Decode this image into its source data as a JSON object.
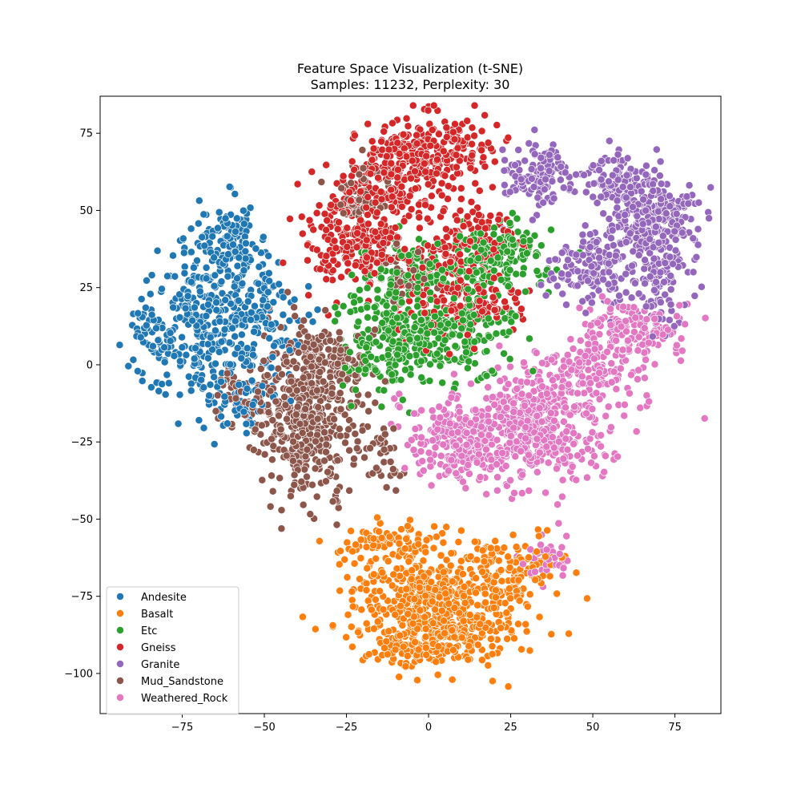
{
  "chart_data": {
    "type": "scatter",
    "title_lines": [
      "Feature Space Visualization (t-SNE)",
      "Samples: 11232, Perplexity: 30"
    ],
    "xlabel": "",
    "ylabel": "",
    "xlim": [
      -100,
      89
    ],
    "ylim": [
      -113,
      87
    ],
    "xticks": [
      -75,
      -50,
      -25,
      0,
      25,
      50,
      75
    ],
    "yticks": [
      -100,
      -75,
      -50,
      -25,
      0,
      25,
      50,
      75
    ],
    "grid": false,
    "legend_position": "lower-left",
    "marker": "circle with white edge",
    "series": [
      {
        "name": "Andesite",
        "color": "#1f77b4",
        "clusters": [
          {
            "cx": -68,
            "cy": 15,
            "sx": 9,
            "sy": 14,
            "n": 360
          },
          {
            "cx": -60,
            "cy": 40,
            "sx": 5,
            "sy": 6,
            "n": 90
          },
          {
            "cx": -48,
            "cy": 15,
            "sx": 5,
            "sy": 10,
            "n": 90
          },
          {
            "cx": -85,
            "cy": 10,
            "sx": 3,
            "sy": 8,
            "n": 40
          },
          {
            "cx": -58,
            "cy": -12,
            "sx": 6,
            "sy": 6,
            "n": 50
          }
        ]
      },
      {
        "name": "Basalt",
        "color": "#ff7f0e",
        "clusters": [
          {
            "cx": 0,
            "cy": -77,
            "sx": 12,
            "sy": 9,
            "n": 420
          },
          {
            "cx": 0,
            "cy": -90,
            "sx": 10,
            "sy": 4,
            "n": 160
          },
          {
            "cx": 25,
            "cy": -67,
            "sx": 8,
            "sy": 6,
            "n": 130
          },
          {
            "cx": -10,
            "cy": -58,
            "sx": 8,
            "sy": 4,
            "n": 90
          },
          {
            "cx": 15,
            "cy": -85,
            "sx": 8,
            "sy": 5,
            "n": 60
          }
        ]
      },
      {
        "name": "Etc",
        "color": "#2ca02c",
        "clusters": [
          {
            "cx": -12,
            "cy": 10,
            "sx": 8,
            "sy": 10,
            "n": 230
          },
          {
            "cx": 10,
            "cy": 10,
            "sx": 8,
            "sy": 8,
            "n": 170
          },
          {
            "cx": 20,
            "cy": 35,
            "sx": 8,
            "sy": 6,
            "n": 160
          },
          {
            "cx": -5,
            "cy": 30,
            "sx": 6,
            "sy": 6,
            "n": 80
          }
        ]
      },
      {
        "name": "Gneiss",
        "color": "#d62728",
        "clusters": [
          {
            "cx": 0,
            "cy": 70,
            "sx": 10,
            "sy": 5,
            "n": 230
          },
          {
            "cx": -22,
            "cy": 40,
            "sx": 8,
            "sy": 7,
            "n": 230
          },
          {
            "cx": -10,
            "cy": 58,
            "sx": 10,
            "sy": 5,
            "n": 160
          },
          {
            "cx": 5,
            "cy": 25,
            "sx": 7,
            "sy": 9,
            "n": 140
          },
          {
            "cx": 15,
            "cy": 40,
            "sx": 6,
            "sy": 6,
            "n": 90
          },
          {
            "cx": 18,
            "cy": 20,
            "sx": 6,
            "sy": 4,
            "n": 60
          }
        ]
      },
      {
        "name": "Granite",
        "color": "#9467bd",
        "clusters": [
          {
            "cx": 68,
            "cy": 47,
            "sx": 7,
            "sy": 6,
            "n": 260
          },
          {
            "cx": 58,
            "cy": 60,
            "sx": 6,
            "sy": 4,
            "n": 110
          },
          {
            "cx": 33,
            "cy": 62,
            "sx": 5,
            "sy": 5,
            "n": 120
          },
          {
            "cx": 52,
            "cy": 30,
            "sx": 9,
            "sy": 6,
            "n": 150
          },
          {
            "cx": 72,
            "cy": 25,
            "sx": 4,
            "sy": 7,
            "n": 80
          }
        ]
      },
      {
        "name": "Mud_Sandstone",
        "color": "#8c564b",
        "clusters": [
          {
            "cx": -38,
            "cy": -18,
            "sx": 7,
            "sy": 14,
            "n": 380
          },
          {
            "cx": -30,
            "cy": 0,
            "sx": 6,
            "sy": 6,
            "n": 120
          },
          {
            "cx": -55,
            "cy": -10,
            "sx": 5,
            "sy": 6,
            "n": 70
          },
          {
            "cx": -20,
            "cy": 55,
            "sx": 4,
            "sy": 6,
            "n": 60
          },
          {
            "cx": -8,
            "cy": 30,
            "sx": 4,
            "sy": 5,
            "n": 40
          },
          {
            "cx": -15,
            "cy": -30,
            "sx": 4,
            "sy": 5,
            "n": 40
          }
        ]
      },
      {
        "name": "Weathered_Rock",
        "color": "#e377c2",
        "clusters": [
          {
            "cx": 30,
            "cy": -22,
            "sx": 12,
            "sy": 8,
            "n": 420
          },
          {
            "cx": 10,
            "cy": -25,
            "sx": 8,
            "sy": 7,
            "n": 180
          },
          {
            "cx": 45,
            "cy": -5,
            "sx": 10,
            "sy": 7,
            "n": 200
          },
          {
            "cx": 62,
            "cy": 10,
            "sx": 8,
            "sy": 6,
            "n": 150
          },
          {
            "cx": 36,
            "cy": -62,
            "sx": 3,
            "sy": 4,
            "n": 40
          }
        ]
      }
    ]
  }
}
